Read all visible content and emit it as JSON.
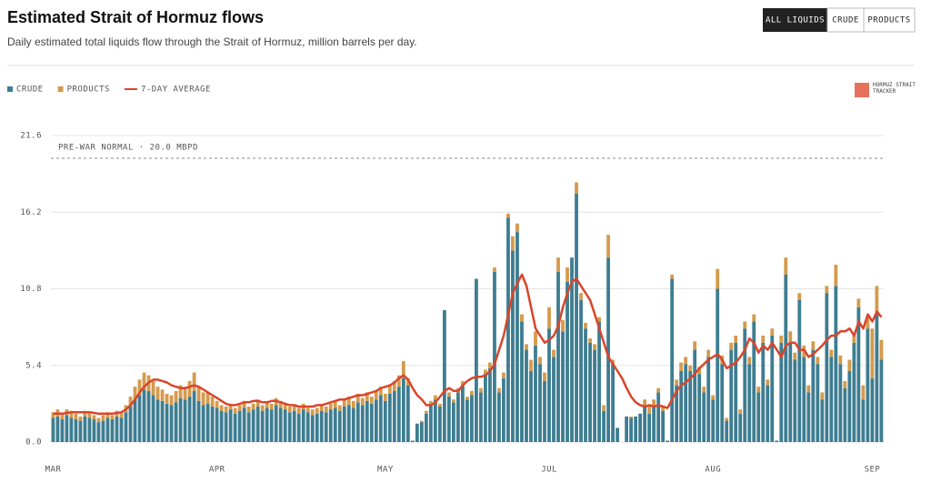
{
  "header": {
    "title": "Estimated Strait of Hormuz flows",
    "subtitle": "Daily estimated total liquids flow through the Strait of Hormuz, million barrels per day."
  },
  "controls": [
    "ALL LIQUIDS",
    "CRUDE",
    "PRODUCTS"
  ],
  "logo": "HORMUZ STRAIT TRACKER",
  "chart_data": {
    "type": "bar",
    "stacked": true,
    "categories": [
      "MAR",
      null,
      null,
      null,
      null,
      null,
      null,
      null,
      null,
      null,
      null,
      null,
      null,
      null,
      null,
      null,
      null,
      null,
      null,
      null,
      null,
      null,
      null,
      null,
      null,
      null,
      null,
      null,
      null,
      null,
      null,
      null,
      null,
      null,
      null,
      null,
      "APR",
      null,
      null,
      null,
      null,
      null,
      null,
      null,
      null,
      null,
      null,
      null,
      null,
      null,
      null,
      null,
      null,
      null,
      null,
      null,
      null,
      null,
      null,
      null,
      null,
      null,
      null,
      null,
      null,
      null,
      null,
      null,
      null,
      null,
      null,
      null,
      null,
      "MAY",
      null,
      null,
      null,
      null,
      null,
      null,
      null,
      null,
      null,
      null,
      null,
      null,
      null,
      null,
      null,
      null,
      null,
      null,
      null,
      null,
      null,
      null,
      null,
      null,
      null,
      null,
      null,
      null,
      null,
      null,
      null,
      null,
      null,
      null,
      null,
      "JUL",
      null,
      null,
      null,
      null,
      null,
      null,
      null,
      null,
      null,
      null,
      null,
      null,
      null,
      null,
      null,
      null,
      null,
      null,
      null,
      null,
      null,
      null,
      null,
      null,
      null,
      null,
      null,
      null,
      null,
      null,
      null,
      null,
      null,
      null,
      null,
      "AUG",
      null,
      null,
      null,
      null,
      null,
      null,
      null,
      null,
      null,
      null,
      null,
      null,
      null,
      null,
      null,
      null,
      null,
      null,
      null,
      null,
      null,
      null,
      null,
      null,
      null,
      null,
      null,
      null,
      null,
      null,
      null,
      null,
      null,
      null,
      "SEP",
      null,
      null
    ],
    "series": [
      {
        "name": "CRUDE",
        "color": "#3e7d91",
        "values": [
          1.7,
          1.8,
          1.6,
          1.9,
          1.7,
          1.6,
          1.5,
          1.8,
          1.7,
          1.6,
          1.4,
          1.5,
          1.7,
          1.6,
          1.8,
          1.7,
          2.1,
          2.5,
          3.0,
          3.3,
          3.7,
          3.6,
          3.3,
          3.0,
          2.9,
          2.7,
          2.6,
          2.8,
          3.1,
          3.0,
          3.2,
          3.6,
          2.9,
          2.6,
          2.7,
          2.5,
          2.4,
          2.2,
          2.1,
          2.3,
          2.0,
          2.2,
          2.4,
          2.1,
          2.3,
          2.5,
          2.2,
          2.4,
          2.3,
          2.6,
          2.4,
          2.3,
          2.1,
          2.2,
          2.0,
          2.3,
          2.1,
          1.9,
          2.0,
          2.2,
          2.1,
          2.3,
          2.4,
          2.2,
          2.5,
          2.6,
          2.4,
          2.8,
          2.6,
          2.9,
          2.7,
          3.0,
          3.3,
          2.9,
          3.4,
          3.6,
          3.9,
          4.5,
          4.0,
          0.1,
          1.3,
          1.4,
          2.0,
          2.6,
          3.0,
          2.5,
          9.3,
          3.2,
          2.8,
          3.5,
          4.0,
          3.0,
          3.3,
          11.5,
          3.5,
          4.8,
          5.2,
          12.0,
          3.5,
          4.5,
          15.8,
          13.5,
          14.8,
          8.5,
          6.5,
          5.0,
          6.8,
          5.5,
          4.3,
          8.0,
          6.0,
          12.0,
          7.8,
          11.3,
          13.0,
          17.5,
          10.0,
          8.0,
          7.0,
          6.5,
          8.5,
          2.2,
          13.0,
          5.5,
          1.0,
          0.0,
          1.8,
          1.7,
          1.8,
          2.0,
          2.5,
          2.0,
          2.5,
          3.5,
          2.2,
          0.1,
          11.5,
          4.0,
          5.0,
          5.5,
          5.0,
          6.5,
          4.8,
          3.5,
          6.0,
          3.0,
          10.8,
          5.5,
          1.5,
          6.5,
          7.0,
          2.0,
          8.0,
          5.5,
          8.5,
          3.5,
          7.0,
          4.0,
          7.5,
          0.1,
          7.0,
          11.8,
          7.0,
          5.8,
          10.0,
          6.0,
          3.5,
          6.5,
          5.5,
          3.0,
          10.5,
          6.0,
          11.0,
          5.5,
          3.8,
          5.0,
          7.0,
          9.5,
          3.0,
          8.0,
          4.5,
          9.0,
          5.8
        ]
      },
      {
        "name": "PRODUCTS",
        "color": "#d49a4c",
        "values": [
          0.4,
          0.5,
          0.4,
          0.4,
          0.5,
          0.4,
          0.3,
          0.4,
          0.4,
          0.3,
          0.3,
          0.4,
          0.4,
          0.3,
          0.4,
          0.4,
          0.5,
          0.7,
          0.9,
          1.1,
          1.2,
          1.1,
          1.0,
          0.9,
          0.8,
          0.7,
          0.7,
          0.8,
          0.9,
          0.9,
          1.1,
          1.3,
          1.0,
          0.9,
          0.8,
          0.7,
          0.5,
          0.4,
          0.4,
          0.4,
          0.4,
          0.4,
          0.5,
          0.4,
          0.4,
          0.5,
          0.4,
          0.4,
          0.4,
          0.5,
          0.5,
          0.4,
          0.4,
          0.4,
          0.4,
          0.4,
          0.3,
          0.4,
          0.4,
          0.4,
          0.4,
          0.4,
          0.5,
          0.4,
          0.5,
          0.6,
          0.5,
          0.6,
          0.5,
          0.6,
          0.5,
          0.6,
          0.6,
          0.5,
          0.6,
          0.7,
          0.8,
          1.2,
          0.5,
          0.0,
          0.0,
          0.1,
          0.2,
          0.3,
          0.3,
          0.2,
          0.0,
          0.3,
          0.2,
          0.3,
          0.3,
          0.2,
          0.3,
          0.0,
          0.3,
          0.3,
          0.4,
          0.3,
          0.3,
          0.4,
          0.3,
          1.0,
          0.6,
          0.5,
          0.4,
          0.8,
          1.0,
          0.5,
          0.6,
          1.5,
          0.5,
          1.0,
          0.8,
          1.0,
          0.0,
          0.8,
          0.5,
          0.4,
          0.3,
          0.4,
          0.3,
          0.4,
          1.6,
          0.3,
          0.0,
          0.0,
          0.0,
          0.1,
          0.0,
          0.0,
          0.5,
          0.6,
          0.5,
          0.3,
          0.3,
          0.0,
          0.3,
          0.4,
          0.6,
          0.5,
          0.4,
          0.6,
          0.5,
          0.4,
          0.5,
          0.3,
          1.4,
          0.6,
          0.2,
          0.5,
          0.5,
          0.3,
          0.5,
          0.5,
          0.5,
          0.4,
          0.5,
          0.4,
          0.5,
          0.0,
          0.5,
          1.2,
          0.8,
          0.5,
          0.5,
          0.8,
          0.5,
          0.6,
          0.5,
          0.5,
          0.5,
          0.5,
          1.5,
          0.6,
          0.5,
          0.8,
          0.6,
          0.6,
          1.0,
          0.8,
          3.5,
          2.0,
          1.4
        ]
      },
      {
        "name": "7-DAY AVERAGE",
        "color": "#d9452b",
        "type": "line",
        "values": [
          2.0,
          2.0,
          2.0,
          2.05,
          2.1,
          2.1,
          2.1,
          2.1,
          2.1,
          2.05,
          2.0,
          2.0,
          2.0,
          2.0,
          2.05,
          2.1,
          2.3,
          2.6,
          3.0,
          3.5,
          3.9,
          4.2,
          4.4,
          4.4,
          4.3,
          4.2,
          4.0,
          3.9,
          3.8,
          3.8,
          3.9,
          4.0,
          3.9,
          3.7,
          3.5,
          3.3,
          3.1,
          2.9,
          2.7,
          2.6,
          2.6,
          2.7,
          2.8,
          2.8,
          2.9,
          2.9,
          2.8,
          2.8,
          2.9,
          2.9,
          2.8,
          2.7,
          2.6,
          2.6,
          2.5,
          2.5,
          2.5,
          2.5,
          2.6,
          2.6,
          2.7,
          2.8,
          2.9,
          3.0,
          3.0,
          3.1,
          3.2,
          3.3,
          3.3,
          3.4,
          3.5,
          3.6,
          3.8,
          3.9,
          4.0,
          4.2,
          4.5,
          4.7,
          4.4,
          3.8,
          3.3,
          3.0,
          2.6,
          2.6,
          2.8,
          3.2,
          3.6,
          3.8,
          3.6,
          3.6,
          4.0,
          4.3,
          4.5,
          4.6,
          4.6,
          4.7,
          5.0,
          5.5,
          6.5,
          7.5,
          9.0,
          10.5,
          11.2,
          11.8,
          11.0,
          9.5,
          8.0,
          7.5,
          7.0,
          7.2,
          7.5,
          8.2,
          9.5,
          10.5,
          11.3,
          11.5,
          11.0,
          10.5,
          10.0,
          9.0,
          8.0,
          7.0,
          6.0,
          5.5,
          5.0,
          4.5,
          3.8,
          3.2,
          2.8,
          2.6,
          2.5,
          2.6,
          2.5,
          2.6,
          2.5,
          2.4,
          3.0,
          3.6,
          4.0,
          4.2,
          4.5,
          4.8,
          5.2,
          5.5,
          5.8,
          6.0,
          6.2,
          5.8,
          5.2,
          5.4,
          5.6,
          6.0,
          6.5,
          7.3,
          7.0,
          6.3,
          6.8,
          6.5,
          7.0,
          6.5,
          6.0,
          6.8,
          7.0,
          7.0,
          6.5,
          6.5,
          6.0,
          6.2,
          6.5,
          6.8,
          7.2,
          7.5,
          7.5,
          7.8,
          7.8,
          8.0,
          7.5,
          8.5,
          8.0,
          9.0,
          8.5,
          9.2,
          8.8
        ]
      }
    ],
    "ylim": [
      0,
      21.6
    ],
    "yticks": [
      {
        "value": 0,
        "label": "0.0"
      },
      5.4,
      10.8,
      16.2,
      21.6
    ],
    "grid": true,
    "reference_line": {
      "label": "PRE-WAR NORMAL · 20.0 MBPD",
      "value": 20.0
    }
  }
}
